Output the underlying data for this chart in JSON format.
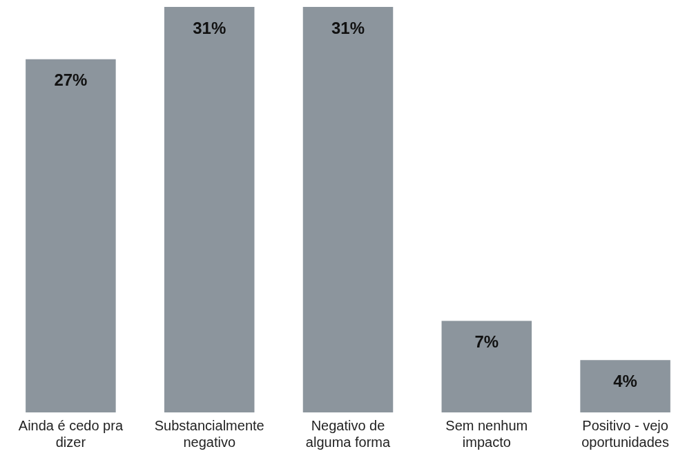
{
  "chart_data": {
    "type": "bar",
    "categories": [
      "Ainda é cedo pra dizer",
      "Substancialmente negativo",
      "Negativo de alguma forma",
      "Sem nenhum impacto",
      "Positivo - vejo oportunidades"
    ],
    "values": [
      27,
      31,
      31,
      7,
      4
    ],
    "color": "#8c959d",
    "value_labels": [
      "27%",
      "31%",
      "31%",
      "7%",
      "4%"
    ],
    "grid": false,
    "legend": false
  }
}
